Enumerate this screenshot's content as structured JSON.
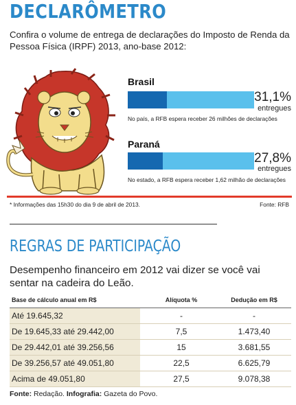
{
  "header": {
    "title": "DECLARÔMETRO",
    "subtitle": "Confira o volume de entrega de declarações do Imposto de Renda da Pessoa Física (IRPF) 2013, ano-base 2012:"
  },
  "regions": [
    {
      "name": "Brasil",
      "percent_label": "31,1%",
      "percent_value": 31.1,
      "status": "entregues",
      "note": "No país, a RFB espera receber 26 milhões de declarações"
    },
    {
      "name": "Paraná",
      "percent_label": "27,8%",
      "percent_value": 27.8,
      "status": "entregues",
      "note": "No estado, a RFB espera receber 1,62 milhão de declarações"
    }
  ],
  "footnote": "* Informações das 15h30 do dia 9 de abril de 2013.",
  "footnote_source": "Fonte: RFB",
  "section": {
    "title": "REGRAS DE PARTICIPAÇÃO",
    "subtitle": "Desempenho financeiro em 2012 vai dizer se você vai sentar na cadeira do Leão."
  },
  "table": {
    "headers": [
      "Base de cálculo anual em R$",
      "Alíquota %",
      "Dedução em R$"
    ],
    "rows": [
      [
        "Até 19.645,32",
        "-",
        "-"
      ],
      [
        "De 19.645,33 até 29.442,00",
        "7,5",
        "1.473,40"
      ],
      [
        "De 29.442,01 até 39.256,56",
        "15",
        "3.681,55"
      ],
      [
        "De 39.256,57 até 49.051,80",
        "22,5",
        "6.625,79"
      ],
      [
        "Acima de 49.051,80",
        "27,5",
        "9.078,38"
      ]
    ]
  },
  "credits": {
    "source_label": "Fonte:",
    "source_value": "Redação.",
    "infographic_label": "Infografia:",
    "infographic_value": "Gazeta do Povo."
  },
  "colors": {
    "accent_blue": "#2b89c9",
    "bar_dark": "#1568b0",
    "bar_light": "#5ac0ec",
    "red_rule": "#e23a2a",
    "table_shade": "#f0ead7"
  },
  "icons": {
    "illustration": "lion-illustration"
  }
}
